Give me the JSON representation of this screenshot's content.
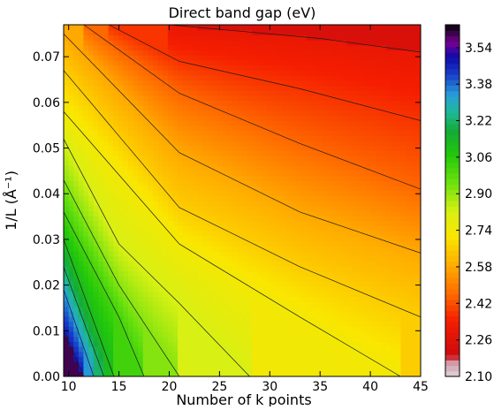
{
  "chart_data": {
    "type": "heatmap",
    "title": "Direct band gap (eV)",
    "xlabel": "Number of k points",
    "ylabel": "1/L (Å⁻¹)",
    "xlim": [
      9.5,
      45
    ],
    "ylim": [
      0.0,
      0.077
    ],
    "x_ticks": [
      "10",
      "15",
      "20",
      "25",
      "30",
      "35",
      "40",
      "45"
    ],
    "y_ticks": [
      "0.00",
      "0.01",
      "0.02",
      "0.03",
      "0.04",
      "0.05",
      "0.06",
      "0.07"
    ],
    "colorbar": {
      "ticks": [
        "2.10",
        "2.26",
        "2.42",
        "2.58",
        "2.74",
        "2.90",
        "3.06",
        "3.22",
        "3.38",
        "3.54"
      ],
      "range": [
        2.1,
        3.64
      ]
    },
    "contour_lines": [
      {
        "level": 2.3,
        "points": [
          [
            20,
            0.077
          ],
          [
            35,
            0.074
          ],
          [
            45,
            0.071
          ]
        ]
      },
      {
        "level": 2.38,
        "points": [
          [
            14,
            0.077
          ],
          [
            21,
            0.069
          ],
          [
            33,
            0.063
          ],
          [
            45,
            0.056
          ]
        ]
      },
      {
        "level": 2.46,
        "points": [
          [
            11.5,
            0.077
          ],
          [
            21,
            0.062
          ],
          [
            33,
            0.051
          ],
          [
            45,
            0.041
          ]
        ]
      },
      {
        "level": 2.58,
        "points": [
          [
            9.5,
            0.075
          ],
          [
            21,
            0.049
          ],
          [
            33,
            0.036
          ],
          [
            45,
            0.027
          ]
        ]
      },
      {
        "level": 2.66,
        "points": [
          [
            9.5,
            0.067
          ],
          [
            21,
            0.037
          ],
          [
            33,
            0.024
          ],
          [
            45,
            0.013
          ]
        ]
      },
      {
        "level": 2.74,
        "points": [
          [
            9.5,
            0.058
          ],
          [
            21,
            0.029
          ],
          [
            33,
            0.013
          ],
          [
            43,
            0.0
          ]
        ]
      },
      {
        "level": 2.82,
        "points": [
          [
            9.5,
            0.052
          ],
          [
            15,
            0.029
          ],
          [
            21,
            0.016
          ],
          [
            28,
            0.0
          ]
        ]
      },
      {
        "level": 2.92,
        "points": [
          [
            9.5,
            0.043
          ],
          [
            15,
            0.02
          ],
          [
            21,
            0.0
          ]
        ]
      },
      {
        "level": 3.02,
        "points": [
          [
            9.5,
            0.036
          ],
          [
            15,
            0.013
          ],
          [
            17.5,
            0.0
          ]
        ]
      },
      {
        "level": 3.12,
        "points": [
          [
            9.5,
            0.03
          ],
          [
            14.5,
            0.0
          ]
        ]
      },
      {
        "level": 3.22,
        "points": [
          [
            9.5,
            0.024
          ],
          [
            13.5,
            0.0
          ]
        ]
      },
      {
        "level": 3.34,
        "points": [
          [
            9.5,
            0.019
          ],
          [
            12.5,
            0.0
          ]
        ]
      },
      {
        "level": 3.48,
        "points": [
          [
            9.5,
            0.01
          ],
          [
            11.5,
            0.0
          ]
        ]
      }
    ]
  }
}
